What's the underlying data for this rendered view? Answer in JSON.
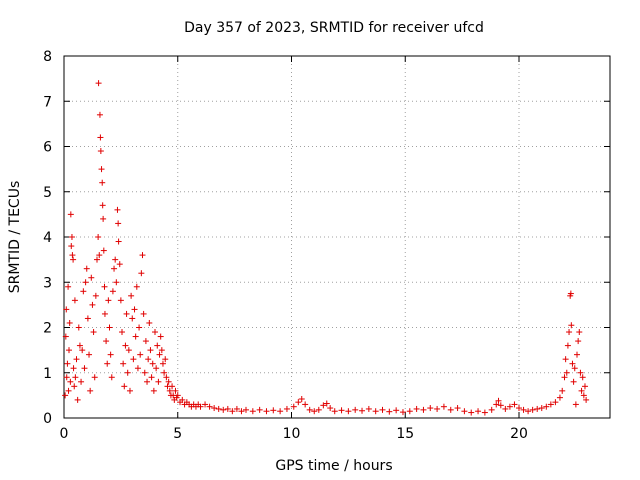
{
  "chart_data": {
    "type": "scatter",
    "title": "Day 357 of 2023, SRMTID for receiver ufcd",
    "xlabel": "GPS time / hours",
    "ylabel": "SRMTID / TECUs",
    "xlim": [
      0,
      24
    ],
    "ylim": [
      0,
      8
    ],
    "xticks": [
      0,
      5,
      10,
      15,
      20
    ],
    "yticks": [
      0,
      1,
      2,
      3,
      4,
      5,
      6,
      7,
      8
    ],
    "grid": true,
    "marker": "+",
    "color": "#e00000",
    "series": [
      {
        "name": "SRMTID",
        "points": [
          [
            0.05,
            0.5
          ],
          [
            0.08,
            1.8
          ],
          [
            0.1,
            2.4
          ],
          [
            0.12,
            0.9
          ],
          [
            0.15,
            1.2
          ],
          [
            0.18,
            2.9
          ],
          [
            0.2,
            0.6
          ],
          [
            0.22,
            1.5
          ],
          [
            0.25,
            2.1
          ],
          [
            0.28,
            0.8
          ],
          [
            0.3,
            4.5
          ],
          [
            0.32,
            3.8
          ],
          [
            0.35,
            4.0
          ],
          [
            0.37,
            3.6
          ],
          [
            0.4,
            3.5
          ],
          [
            0.42,
            1.1
          ],
          [
            0.45,
            0.7
          ],
          [
            0.48,
            2.6
          ],
          [
            0.5,
            0.9
          ],
          [
            0.55,
            1.3
          ],
          [
            0.6,
            0.4
          ],
          [
            0.65,
            2.0
          ],
          [
            0.7,
            1.6
          ],
          [
            0.75,
            0.8
          ],
          [
            0.8,
            1.5
          ],
          [
            0.85,
            2.8
          ],
          [
            0.9,
            1.1
          ],
          [
            0.95,
            3.0
          ],
          [
            1.0,
            3.3
          ],
          [
            1.05,
            2.2
          ],
          [
            1.1,
            1.4
          ],
          [
            1.15,
            0.6
          ],
          [
            1.2,
            3.1
          ],
          [
            1.25,
            2.5
          ],
          [
            1.3,
            1.9
          ],
          [
            1.35,
            0.9
          ],
          [
            1.4,
            2.7
          ],
          [
            1.45,
            3.5
          ],
          [
            1.5,
            4.0
          ],
          [
            1.52,
            7.4
          ],
          [
            1.55,
            3.6
          ],
          [
            1.58,
            6.7
          ],
          [
            1.6,
            6.2
          ],
          [
            1.62,
            5.9
          ],
          [
            1.65,
            5.5
          ],
          [
            1.68,
            5.2
          ],
          [
            1.7,
            4.7
          ],
          [
            1.72,
            4.4
          ],
          [
            1.75,
            3.7
          ],
          [
            1.78,
            2.9
          ],
          [
            1.8,
            2.3
          ],
          [
            1.85,
            1.7
          ],
          [
            1.9,
            1.2
          ],
          [
            1.95,
            2.6
          ],
          [
            2.0,
            2.0
          ],
          [
            2.05,
            1.4
          ],
          [
            2.1,
            0.9
          ],
          [
            2.15,
            2.8
          ],
          [
            2.2,
            3.3
          ],
          [
            2.25,
            3.5
          ],
          [
            2.3,
            3.0
          ],
          [
            2.35,
            4.6
          ],
          [
            2.38,
            4.3
          ],
          [
            2.4,
            3.9
          ],
          [
            2.45,
            3.4
          ],
          [
            2.5,
            2.6
          ],
          [
            2.55,
            1.9
          ],
          [
            2.6,
            1.2
          ],
          [
            2.65,
            0.7
          ],
          [
            2.7,
            1.6
          ],
          [
            2.75,
            2.3
          ],
          [
            2.8,
            1.0
          ],
          [
            2.85,
            1.5
          ],
          [
            2.9,
            0.6
          ],
          [
            2.95,
            2.7
          ],
          [
            3.0,
            2.2
          ],
          [
            3.05,
            1.3
          ],
          [
            3.1,
            2.4
          ],
          [
            3.15,
            1.8
          ],
          [
            3.2,
            2.9
          ],
          [
            3.25,
            1.1
          ],
          [
            3.3,
            2.0
          ],
          [
            3.35,
            1.4
          ],
          [
            3.4,
            3.2
          ],
          [
            3.45,
            3.6
          ],
          [
            3.5,
            2.3
          ],
          [
            3.55,
            1.0
          ],
          [
            3.6,
            1.7
          ],
          [
            3.65,
            0.8
          ],
          [
            3.7,
            1.3
          ],
          [
            3.75,
            2.1
          ],
          [
            3.8,
            1.5
          ],
          [
            3.85,
            0.9
          ],
          [
            3.9,
            1.2
          ],
          [
            3.95,
            0.6
          ],
          [
            4.0,
            1.9
          ],
          [
            4.05,
            1.1
          ],
          [
            4.1,
            1.6
          ],
          [
            4.15,
            0.8
          ],
          [
            4.2,
            1.4
          ],
          [
            4.25,
            1.8
          ],
          [
            4.3,
            1.5
          ],
          [
            4.35,
            1.2
          ],
          [
            4.4,
            1.0
          ],
          [
            4.45,
            1.3
          ],
          [
            4.5,
            0.9
          ],
          [
            4.55,
            0.7
          ],
          [
            4.6,
            0.8
          ],
          [
            4.65,
            0.6
          ],
          [
            4.7,
            0.5
          ],
          [
            4.75,
            0.7
          ],
          [
            4.8,
            0.5
          ],
          [
            4.85,
            0.4
          ],
          [
            4.9,
            0.6
          ],
          [
            4.95,
            0.45
          ],
          [
            5.0,
            0.5
          ],
          [
            5.1,
            0.35
          ],
          [
            5.2,
            0.4
          ],
          [
            5.3,
            0.3
          ],
          [
            5.4,
            0.35
          ],
          [
            5.5,
            0.3
          ],
          [
            5.6,
            0.25
          ],
          [
            5.7,
            0.3
          ],
          [
            5.8,
            0.25
          ],
          [
            5.9,
            0.3
          ],
          [
            6.0,
            0.25
          ],
          [
            6.2,
            0.3
          ],
          [
            6.4,
            0.25
          ],
          [
            6.6,
            0.22
          ],
          [
            6.8,
            0.2
          ],
          [
            7.0,
            0.18
          ],
          [
            7.2,
            0.2
          ],
          [
            7.4,
            0.15
          ],
          [
            7.6,
            0.2
          ],
          [
            7.8,
            0.15
          ],
          [
            8.0,
            0.18
          ],
          [
            8.3,
            0.15
          ],
          [
            8.6,
            0.18
          ],
          [
            8.9,
            0.15
          ],
          [
            9.2,
            0.17
          ],
          [
            9.5,
            0.15
          ],
          [
            9.8,
            0.2
          ],
          [
            10.1,
            0.25
          ],
          [
            10.3,
            0.35
          ],
          [
            10.45,
            0.42
          ],
          [
            10.6,
            0.3
          ],
          [
            10.8,
            0.18
          ],
          [
            11.0,
            0.15
          ],
          [
            11.2,
            0.18
          ],
          [
            11.4,
            0.28
          ],
          [
            11.55,
            0.32
          ],
          [
            11.7,
            0.22
          ],
          [
            11.9,
            0.15
          ],
          [
            12.2,
            0.17
          ],
          [
            12.5,
            0.15
          ],
          [
            12.8,
            0.18
          ],
          [
            13.1,
            0.16
          ],
          [
            13.4,
            0.2
          ],
          [
            13.7,
            0.15
          ],
          [
            14.0,
            0.18
          ],
          [
            14.3,
            0.14
          ],
          [
            14.6,
            0.17
          ],
          [
            14.9,
            0.13
          ],
          [
            15.2,
            0.15
          ],
          [
            15.5,
            0.2
          ],
          [
            15.8,
            0.18
          ],
          [
            16.1,
            0.22
          ],
          [
            16.4,
            0.2
          ],
          [
            16.7,
            0.25
          ],
          [
            17.0,
            0.18
          ],
          [
            17.3,
            0.22
          ],
          [
            17.6,
            0.15
          ],
          [
            17.9,
            0.12
          ],
          [
            18.2,
            0.15
          ],
          [
            18.5,
            0.12
          ],
          [
            18.8,
            0.18
          ],
          [
            19.0,
            0.3
          ],
          [
            19.1,
            0.38
          ],
          [
            19.2,
            0.28
          ],
          [
            19.4,
            0.2
          ],
          [
            19.6,
            0.25
          ],
          [
            19.8,
            0.3
          ],
          [
            20.0,
            0.22
          ],
          [
            20.2,
            0.18
          ],
          [
            20.4,
            0.15
          ],
          [
            20.6,
            0.18
          ],
          [
            20.8,
            0.2
          ],
          [
            21.0,
            0.22
          ],
          [
            21.2,
            0.25
          ],
          [
            21.4,
            0.3
          ],
          [
            21.6,
            0.35
          ],
          [
            21.8,
            0.45
          ],
          [
            21.9,
            0.6
          ],
          [
            22.0,
            0.9
          ],
          [
            22.05,
            1.3
          ],
          [
            22.1,
            1.0
          ],
          [
            22.15,
            1.6
          ],
          [
            22.2,
            1.9
          ],
          [
            22.25,
            2.7
          ],
          [
            22.28,
            2.75
          ],
          [
            22.3,
            2.05
          ],
          [
            22.35,
            1.2
          ],
          [
            22.4,
            0.8
          ],
          [
            22.45,
            1.1
          ],
          [
            22.5,
            0.3
          ],
          [
            22.55,
            1.4
          ],
          [
            22.6,
            1.7
          ],
          [
            22.65,
            1.9
          ],
          [
            22.7,
            1.0
          ],
          [
            22.75,
            0.6
          ],
          [
            22.8,
            0.9
          ],
          [
            22.85,
            0.5
          ],
          [
            22.9,
            0.7
          ],
          [
            22.95,
            0.4
          ]
        ]
      }
    ]
  }
}
